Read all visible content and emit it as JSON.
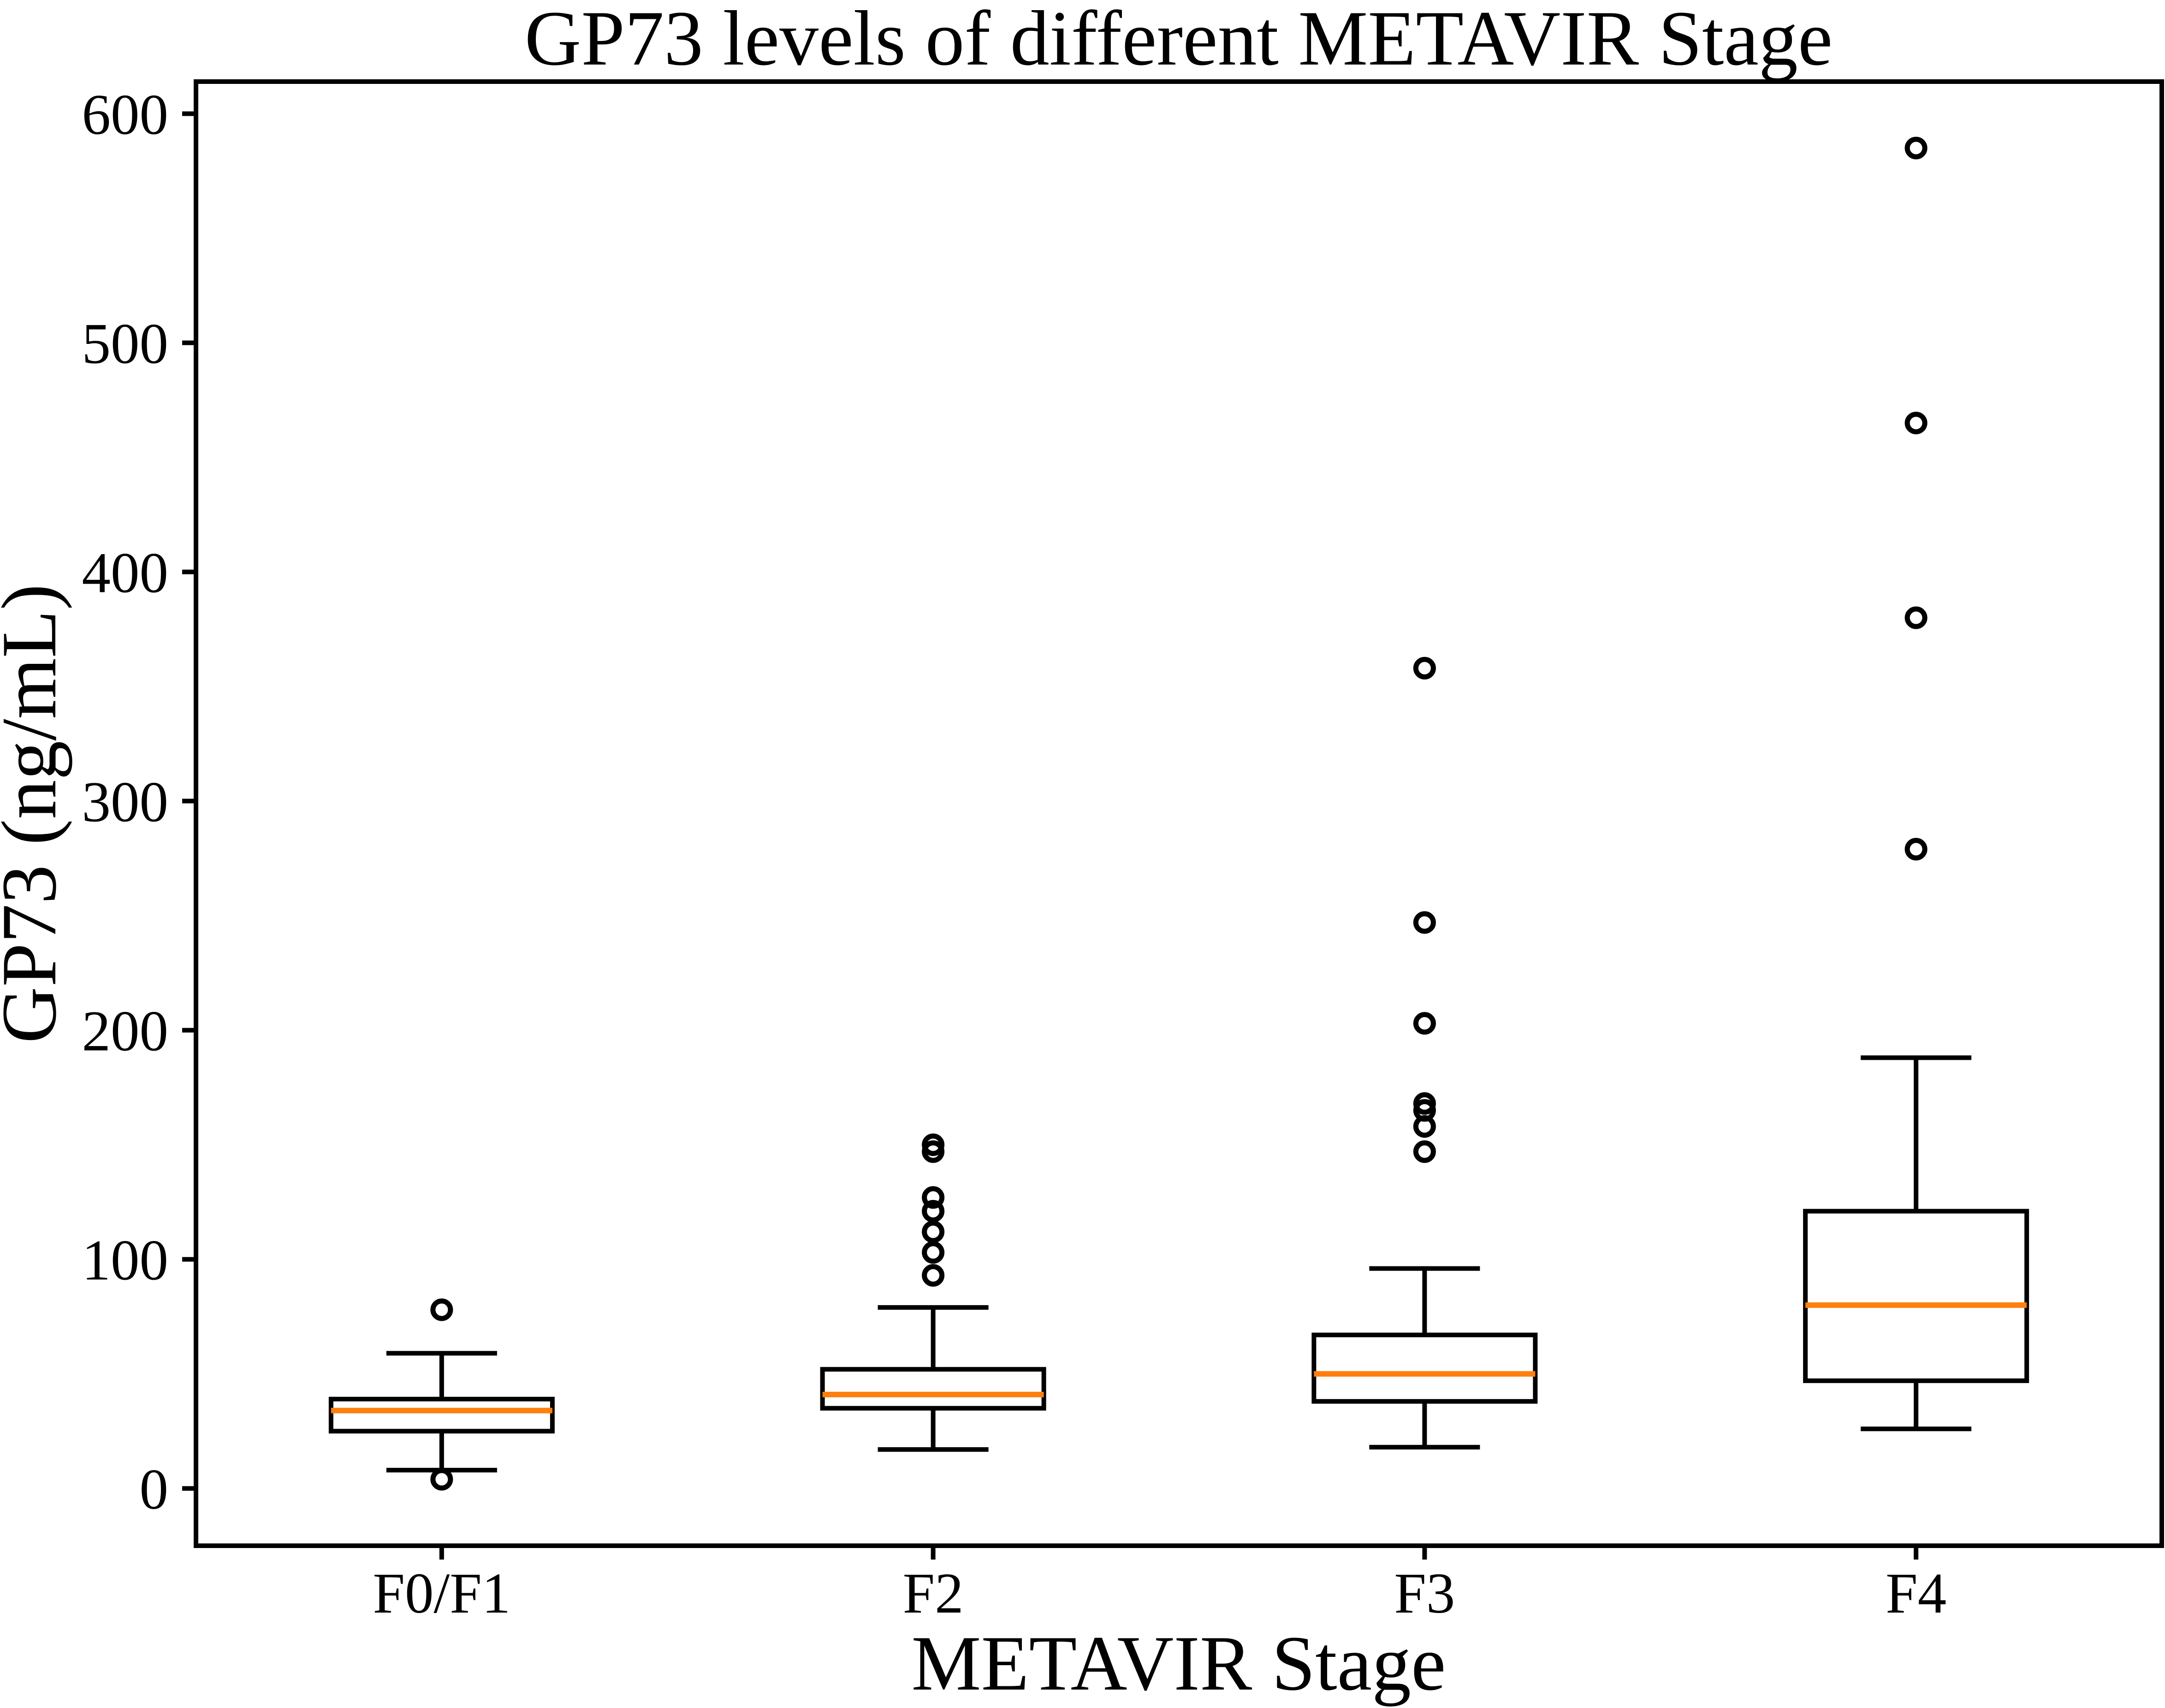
{
  "chart_data": {
    "type": "boxplot",
    "title": "GP73 levels of different METAVIR Stage",
    "xlabel": "METAVIR Stage",
    "ylabel": "GP73 (ng/mL)",
    "categories": [
      "F0/F1",
      "F2",
      "F3",
      "F4"
    ],
    "y_ticks": [
      0,
      100,
      200,
      300,
      400,
      500,
      600
    ],
    "ylim": [
      -25,
      614
    ],
    "grid": false,
    "legend": "none",
    "colors": {
      "median": "#ff7f0e",
      "box_stroke": "#000000",
      "background": "#ffffff"
    },
    "series": [
      {
        "name": "F0/F1",
        "whisker_low": 8,
        "q1": 25,
        "median": 34,
        "q3": 39,
        "whisker_high": 59,
        "outliers": [
          4,
          78
        ]
      },
      {
        "name": "F2",
        "whisker_low": 17,
        "q1": 35,
        "median": 41,
        "q3": 52,
        "whisker_high": 79,
        "outliers": [
          93,
          103,
          112,
          121,
          127,
          147,
          150
        ]
      },
      {
        "name": "F3",
        "whisker_low": 18,
        "q1": 38,
        "median": 50,
        "q3": 67,
        "whisker_high": 96,
        "outliers": [
          147,
          158,
          165,
          168,
          203,
          247,
          358
        ]
      },
      {
        "name": "F4",
        "whisker_low": 26,
        "q1": 47,
        "median": 80,
        "q3": 121,
        "whisker_high": 188,
        "outliers": [
          279,
          380,
          465,
          585
        ]
      }
    ]
  }
}
